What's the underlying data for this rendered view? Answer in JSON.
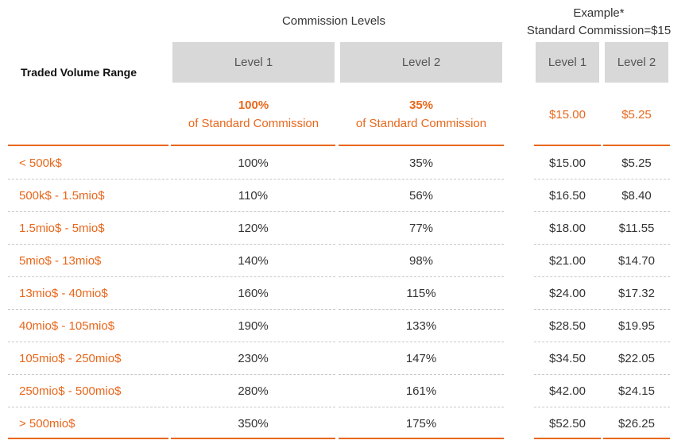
{
  "header": {
    "commission_levels": "Commission Levels",
    "example_line1": "Example*",
    "example_line2": "Standard Commission=$15",
    "traded_volume_range": "Traded Volume Range",
    "level1": "Level 1",
    "level2": "Level 2"
  },
  "std_row": {
    "level1_pct": "100%",
    "level1_sub": "of Standard Commission",
    "level2_pct": "35%",
    "level2_sub": "of Standard Commission",
    "ex_level1": "$15.00",
    "ex_level2": "$5.25"
  },
  "rows": [
    {
      "range": "< 500k$",
      "l1": "100%",
      "l2": "35%",
      "e1": "$15.00",
      "e2": "$5.25"
    },
    {
      "range": "500k$ - 1.5mio$",
      "l1": "110%",
      "l2": "56%",
      "e1": "$16.50",
      "e2": "$8.40"
    },
    {
      "range": "1.5mio$ - 5mio$",
      "l1": "120%",
      "l2": "77%",
      "e1": "$18.00",
      "e2": "$11.55"
    },
    {
      "range": "5mio$ - 13mio$",
      "l1": "140%",
      "l2": "98%",
      "e1": "$21.00",
      "e2": "$14.70"
    },
    {
      "range": "13mio$ - 40mio$",
      "l1": "160%",
      "l2": "115%",
      "e1": "$24.00",
      "e2": "$17.32"
    },
    {
      "range": "40mio$ - 105mio$",
      "l1": "190%",
      "l2": "133%",
      "e1": "$28.50",
      "e2": "$19.95"
    },
    {
      "range": "105mio$ - 250mio$",
      "l1": "230%",
      "l2": "147%",
      "e1": "$34.50",
      "e2": "$22.05"
    },
    {
      "range": "250mio$ - 500mio$",
      "l1": "280%",
      "l2": "161%",
      "e1": "$42.00",
      "e2": "$24.15"
    },
    {
      "range": "> 500mio$",
      "l1": "350%",
      "l2": "175%",
      "e1": "$52.50",
      "e2": "$26.25"
    }
  ],
  "colors": {
    "accent": "#e8671b",
    "header_bg": "#d8d8d8"
  }
}
